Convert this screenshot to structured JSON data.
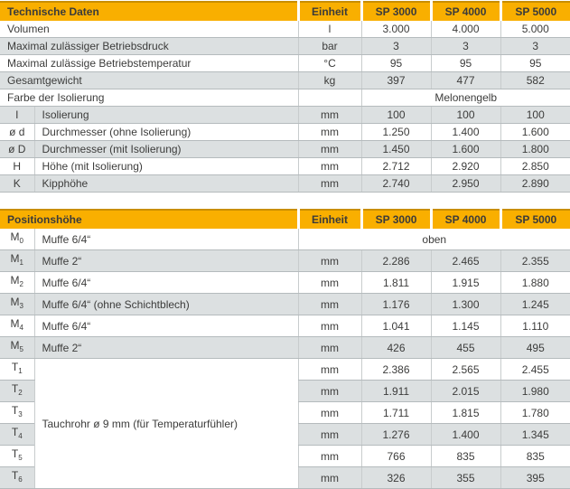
{
  "colors": {
    "header_bg": "#F9AF00",
    "header_top_rule": "#C98E00",
    "row_alt_bg": "#DCE0E1",
    "grid_line": "#B5BBBD",
    "text": "#3C3C3B"
  },
  "table1": {
    "title": "Technische Daten",
    "col_headers": [
      "Einheit",
      "SP 3000",
      "SP 4000",
      "SP 5000"
    ],
    "rows": [
      {
        "label": "Volumen",
        "unit": "l",
        "v": [
          "3.000",
          "4.000",
          "5.000"
        ]
      },
      {
        "label": "Maximal zulässiger Betriebsdruck",
        "unit": "bar",
        "v": [
          "3",
          "3",
          "3"
        ]
      },
      {
        "label": "Maximal zulässige Betriebstemperatur",
        "unit": "°C",
        "v": [
          "95",
          "95",
          "95"
        ]
      },
      {
        "label": "Gesamtgewicht",
        "unit": "kg",
        "v": [
          "397",
          "477",
          "582"
        ]
      },
      {
        "label": "Farbe der Isolierung",
        "unit": "",
        "span_value": "Melonengelb"
      },
      {
        "sym": "I",
        "label": "Isolierung",
        "unit": "mm",
        "v": [
          "100",
          "100",
          "100"
        ]
      },
      {
        "sym": "ø d",
        "label": "Durchmesser (ohne Isolierung)",
        "unit": "mm",
        "v": [
          "1.250",
          "1.400",
          "1.600"
        ]
      },
      {
        "sym": "ø D",
        "label": "Durchmesser (mit Isolierung)",
        "unit": "mm",
        "v": [
          "1.450",
          "1.600",
          "1.800"
        ]
      },
      {
        "sym": "H",
        "label": "Höhe (mit Isolierung)",
        "unit": "mm",
        "v": [
          "2.712",
          "2.920",
          "2.850"
        ]
      },
      {
        "sym": "K",
        "label": "Kipphöhe",
        "unit": "mm",
        "v": [
          "2.740",
          "2.950",
          "2.890"
        ]
      }
    ]
  },
  "table2": {
    "title": "Positionshöhe",
    "col_headers": [
      "Einheit",
      "SP 3000",
      "SP 4000",
      "SP 5000"
    ],
    "t_group_label": "Tauchrohr ø 9 mm (für Temperaturfühler)",
    "rows": [
      {
        "sym": "M",
        "sub": "0",
        "label": "Muffe 6/4“",
        "span_value": "oben"
      },
      {
        "sym": "M",
        "sub": "1",
        "label": "Muffe 2“",
        "unit": "mm",
        "v": [
          "2.286",
          "2.465",
          "2.355"
        ]
      },
      {
        "sym": "M",
        "sub": "2",
        "label": "Muffe 6/4“",
        "unit": "mm",
        "v": [
          "1.811",
          "1.915",
          "1.880"
        ]
      },
      {
        "sym": "M",
        "sub": "3",
        "label": "Muffe 6/4“ (ohne Schichtblech)",
        "unit": "mm",
        "v": [
          "1.176",
          "1.300",
          "1.245"
        ]
      },
      {
        "sym": "M",
        "sub": "4",
        "label": "Muffe 6/4“",
        "unit": "mm",
        "v": [
          "1.041",
          "1.145",
          "1.110"
        ]
      },
      {
        "sym": "M",
        "sub": "5",
        "label": "Muffe 2“",
        "unit": "mm",
        "v": [
          "426",
          "455",
          "495"
        ]
      },
      {
        "sym": "T",
        "sub": "1",
        "unit": "mm",
        "v": [
          "2.386",
          "2.565",
          "2.455"
        ]
      },
      {
        "sym": "T",
        "sub": "2",
        "unit": "mm",
        "v": [
          "1.911",
          "2.015",
          "1.980"
        ]
      },
      {
        "sym": "T",
        "sub": "3",
        "unit": "mm",
        "v": [
          "1.711",
          "1.815",
          "1.780"
        ]
      },
      {
        "sym": "T",
        "sub": "4",
        "unit": "mm",
        "v": [
          "1.276",
          "1.400",
          "1.345"
        ]
      },
      {
        "sym": "T",
        "sub": "5",
        "unit": "mm",
        "v": [
          "766",
          "835",
          "835"
        ]
      },
      {
        "sym": "T",
        "sub": "6",
        "unit": "mm",
        "v": [
          "326",
          "355",
          "395"
        ]
      }
    ]
  }
}
